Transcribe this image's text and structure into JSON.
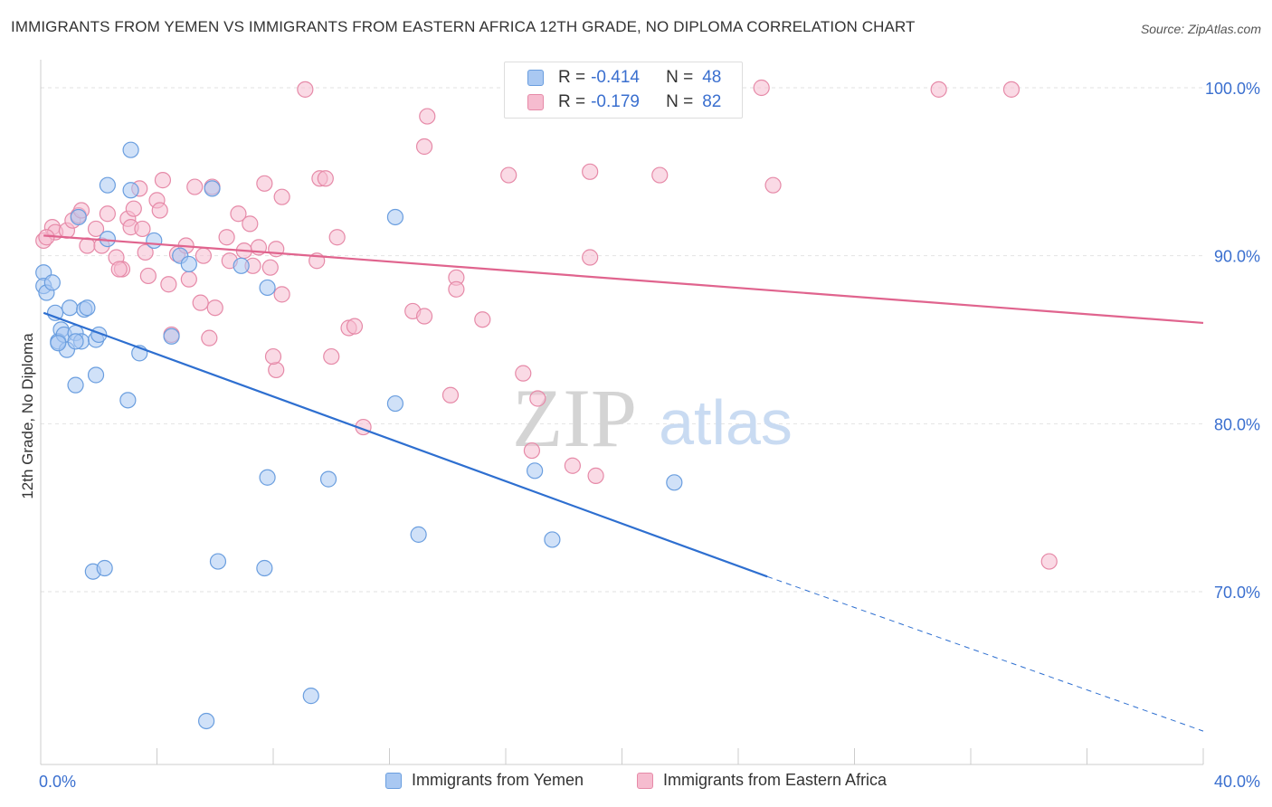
{
  "header": {
    "title": "IMMIGRANTS FROM YEMEN VS IMMIGRANTS FROM EASTERN AFRICA 12TH GRADE, NO DIPLOMA CORRELATION CHART",
    "source": "Source: ZipAtlas.com"
  },
  "watermark": {
    "zip": "ZIP",
    "atlas": "atlas"
  },
  "legend": {
    "r_label": "R =",
    "n_label": "N =",
    "rows": [
      {
        "r": "-0.414",
        "n": "48"
      },
      {
        "r": "-0.179",
        "n": "82"
      }
    ]
  },
  "colors": {
    "series_a_fill": "#a9c8f2",
    "series_a_stroke": "#6a9edf",
    "series_a_line": "#2e6fd0",
    "series_b_fill": "#f6bccf",
    "series_b_stroke": "#e68aa8",
    "series_b_line": "#e0648e",
    "tick_label": "#3a6fcf",
    "grid": "#e2e2e2"
  },
  "chart_data": {
    "type": "scatter",
    "title": "IMMIGRANTS FROM YEMEN VS IMMIGRANTS FROM EASTERN AFRICA 12TH GRADE, NO DIPLOMA CORRELATION CHART",
    "xlabel": "",
    "ylabel": "12th Grade, No Diploma",
    "xlim": [
      0,
      40
    ],
    "ylim": [
      61,
      102
    ],
    "x_tick_labels": [
      "0.0%",
      "40.0%"
    ],
    "y_ticks": [
      100,
      90,
      80,
      70
    ],
    "y_tick_labels": [
      "100.0%",
      "90.0%",
      "80.0%",
      "70.0%"
    ],
    "grid": true,
    "legend_position": "top-center",
    "series": [
      {
        "name": "Immigrants from Yemen",
        "r": -0.414,
        "n": 48,
        "trend": {
          "x0": 0.1,
          "y0": 86.6,
          "x1": 25.0,
          "y1": 70.9,
          "dashed_to_x": 40.0,
          "dashed_to_y": 61.7
        },
        "points": [
          [
            0.1,
            89.0
          ],
          [
            0.1,
            88.2
          ],
          [
            0.2,
            87.8
          ],
          [
            0.4,
            88.4
          ],
          [
            0.5,
            86.6
          ],
          [
            0.7,
            85.6
          ],
          [
            0.6,
            84.9
          ],
          [
            0.8,
            85.3
          ],
          [
            0.9,
            84.4
          ],
          [
            1.0,
            86.9
          ],
          [
            1.2,
            85.4
          ],
          [
            1.4,
            84.9
          ],
          [
            1.5,
            86.8
          ],
          [
            1.6,
            86.9
          ],
          [
            1.9,
            85.0
          ],
          [
            2.0,
            85.3
          ],
          [
            1.9,
            82.9
          ],
          [
            1.2,
            82.3
          ],
          [
            2.3,
            94.2
          ],
          [
            3.1,
            93.9
          ],
          [
            3.1,
            96.3
          ],
          [
            2.3,
            91.0
          ],
          [
            1.3,
            92.3
          ],
          [
            3.4,
            84.2
          ],
          [
            3.0,
            81.4
          ],
          [
            3.9,
            90.9
          ],
          [
            4.8,
            90.0
          ],
          [
            5.1,
            89.5
          ],
          [
            4.5,
            85.2
          ],
          [
            5.9,
            94.0
          ],
          [
            6.9,
            89.4
          ],
          [
            7.8,
            88.1
          ],
          [
            12.2,
            92.3
          ],
          [
            12.2,
            81.2
          ],
          [
            7.8,
            76.8
          ],
          [
            9.9,
            76.7
          ],
          [
            13.0,
            73.4
          ],
          [
            17.0,
            77.2
          ],
          [
            21.8,
            76.5
          ],
          [
            17.6,
            73.1
          ],
          [
            1.8,
            71.2
          ],
          [
            2.2,
            71.4
          ],
          [
            6.1,
            71.8
          ],
          [
            7.7,
            71.4
          ],
          [
            9.3,
            63.8
          ],
          [
            5.7,
            62.3
          ],
          [
            0.6,
            84.8
          ],
          [
            1.2,
            84.9
          ]
        ]
      },
      {
        "name": "Immigrants from Eastern Africa",
        "r": -0.179,
        "n": 82,
        "trend": {
          "x0": 0.1,
          "y0": 91.2,
          "x1": 40.0,
          "y1": 86.0
        },
        "points": [
          [
            0.1,
            90.9
          ],
          [
            0.4,
            91.7
          ],
          [
            0.5,
            91.4
          ],
          [
            0.9,
            91.5
          ],
          [
            1.1,
            92.1
          ],
          [
            1.3,
            92.4
          ],
          [
            1.4,
            92.7
          ],
          [
            1.6,
            90.6
          ],
          [
            1.9,
            91.6
          ],
          [
            2.3,
            92.5
          ],
          [
            2.1,
            90.6
          ],
          [
            2.6,
            89.9
          ],
          [
            2.8,
            89.2
          ],
          [
            3.0,
            92.2
          ],
          [
            3.1,
            91.7
          ],
          [
            3.2,
            92.8
          ],
          [
            3.4,
            94.0
          ],
          [
            3.5,
            91.6
          ],
          [
            3.6,
            90.2
          ],
          [
            3.7,
            88.8
          ],
          [
            4.0,
            93.3
          ],
          [
            4.1,
            92.7
          ],
          [
            4.2,
            94.5
          ],
          [
            4.4,
            88.3
          ],
          [
            4.5,
            85.3
          ],
          [
            4.7,
            90.1
          ],
          [
            5.0,
            90.6
          ],
          [
            5.1,
            88.6
          ],
          [
            5.3,
            94.1
          ],
          [
            5.5,
            87.2
          ],
          [
            5.6,
            90.0
          ],
          [
            5.9,
            94.1
          ],
          [
            6.0,
            86.9
          ],
          [
            6.4,
            91.1
          ],
          [
            6.5,
            89.7
          ],
          [
            6.8,
            92.5
          ],
          [
            7.0,
            90.3
          ],
          [
            7.2,
            91.9
          ],
          [
            7.3,
            89.4
          ],
          [
            7.5,
            90.5
          ],
          [
            7.7,
            94.3
          ],
          [
            7.9,
            89.3
          ],
          [
            8.1,
            90.4
          ],
          [
            8.3,
            87.7
          ],
          [
            8.3,
            93.5
          ],
          [
            8.1,
            83.2
          ],
          [
            8.0,
            84.0
          ],
          [
            9.1,
            99.9
          ],
          [
            9.5,
            89.7
          ],
          [
            9.6,
            94.6
          ],
          [
            9.8,
            94.6
          ],
          [
            10.0,
            84.0
          ],
          [
            10.2,
            91.1
          ],
          [
            10.6,
            85.7
          ],
          [
            10.8,
            85.8
          ],
          [
            11.1,
            79.8
          ],
          [
            12.8,
            86.7
          ],
          [
            13.2,
            86.4
          ],
          [
            13.2,
            96.5
          ],
          [
            13.3,
            98.3
          ],
          [
            14.1,
            81.7
          ],
          [
            14.3,
            88.7
          ],
          [
            14.3,
            88.0
          ],
          [
            15.2,
            86.2
          ],
          [
            16.1,
            94.8
          ],
          [
            16.6,
            83.0
          ],
          [
            16.9,
            78.4
          ],
          [
            17.1,
            81.5
          ],
          [
            18.3,
            77.5
          ],
          [
            18.9,
            89.9
          ],
          [
            18.9,
            95.0
          ],
          [
            19.1,
            76.9
          ],
          [
            19.7,
            99.9
          ],
          [
            21.3,
            94.8
          ],
          [
            24.8,
            100.0
          ],
          [
            25.2,
            94.2
          ],
          [
            30.9,
            99.9
          ],
          [
            33.4,
            99.9
          ],
          [
            34.7,
            71.8
          ],
          [
            0.2,
            91.1
          ],
          [
            5.8,
            85.1
          ],
          [
            2.7,
            89.2
          ]
        ]
      }
    ]
  },
  "bottom_legend": {
    "items": [
      {
        "label": "Immigrants from Yemen"
      },
      {
        "label": "Immigrants from Eastern Africa"
      }
    ]
  }
}
